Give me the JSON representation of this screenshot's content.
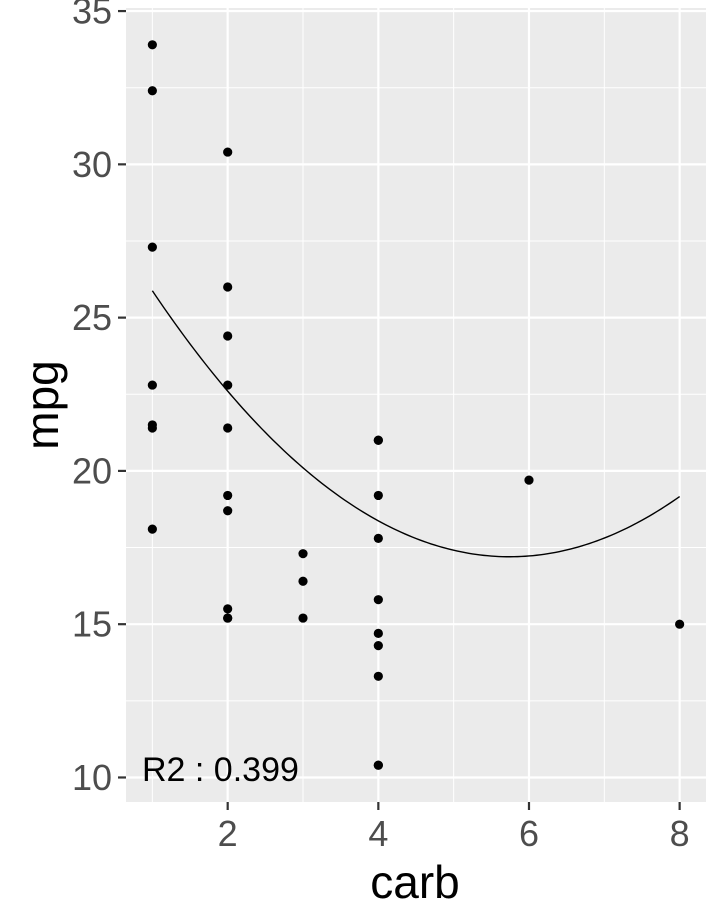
{
  "chart_data": {
    "type": "scatter",
    "title": "",
    "xlabel": "carb",
    "ylabel": "mpg",
    "xlim": [
      0.65,
      8.35
    ],
    "ylim": [
      9.2,
      35.1
    ],
    "x_ticks": [
      2,
      4,
      6,
      8
    ],
    "x_tick_labels": [
      "2",
      "4",
      "6",
      "8"
    ],
    "x_minor_breaks": [
      1,
      3,
      5,
      7
    ],
    "y_ticks": [
      10,
      15,
      20,
      25,
      30,
      35
    ],
    "y_tick_labels": [
      "10",
      "15",
      "20",
      "25",
      "30",
      "35"
    ],
    "y_minor_breaks": [
      12.5,
      17.5,
      22.5,
      27.5,
      32.5
    ],
    "grid": true,
    "legend": "none",
    "colors": {
      "panel_background": "#ebebeb",
      "grid": "#ffffff",
      "points": "#000000",
      "fit_line": "#000000",
      "tick_marks": "#333333"
    },
    "series": [
      {
        "kind": "points",
        "x": [
          1,
          1,
          1,
          1,
          1,
          1,
          1,
          2,
          2,
          2,
          2,
          2,
          2,
          2,
          2,
          2,
          2,
          3,
          3,
          3,
          4,
          4,
          4,
          4,
          4,
          4,
          4,
          4,
          4,
          4,
          6,
          8
        ],
        "y": [
          33.9,
          32.4,
          27.3,
          22.8,
          21.5,
          21.4,
          18.1,
          30.4,
          26.0,
          24.4,
          22.8,
          21.4,
          19.2,
          18.7,
          15.5,
          15.2,
          15.2,
          17.3,
          16.4,
          15.2,
          21.0,
          21.0,
          19.2,
          17.8,
          15.8,
          14.7,
          14.3,
          13.3,
          10.4,
          10.4,
          19.7,
          15.0
        ]
      },
      {
        "kind": "fit",
        "method": "quadratic",
        "coefficients": [
          29.92,
          -4.43,
          0.3857
        ],
        "x_range": [
          1,
          8
        ]
      }
    ],
    "annotation": "R2 : 0.399"
  }
}
